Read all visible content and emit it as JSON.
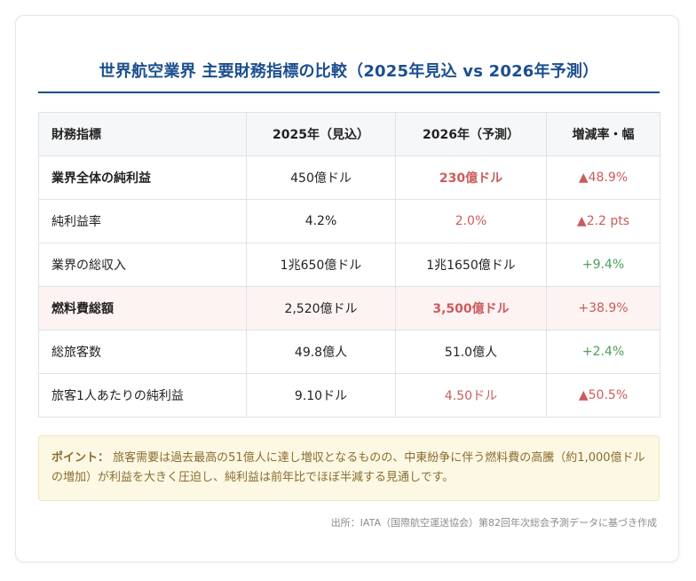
{
  "title": "世界航空業界 主要財務指標の比較（2025年見込 vs 2026年予測）",
  "table": {
    "headers": [
      "財務指標",
      "2025年（見込）",
      "2026年（予測）",
      "増減率・幅"
    ],
    "rows": [
      {
        "label": "業界全体の純利益",
        "y2025": "450億ドル",
        "y2026": "230億ドル",
        "change": "▲48.9%"
      },
      {
        "label": "純利益率",
        "y2025": "4.2%",
        "y2026": "2.0%",
        "change": "▲2.2 pts"
      },
      {
        "label": "業界の総収入",
        "y2025": "1兆650億ドル",
        "y2026": "1兆1650億ドル",
        "change": "+9.4%"
      },
      {
        "label": "燃料費総額",
        "y2025": "2,520億ドル",
        "y2026": "3,500億ドル",
        "change": "+38.9%"
      },
      {
        "label": "総旅客数",
        "y2025": "49.8億人",
        "y2026": "51.0億人",
        "change": "+2.4%"
      },
      {
        "label": "旅客1人あたりの純利益",
        "y2025": "9.10ドル",
        "y2026": "4.50ドル",
        "change": "▲50.5%"
      }
    ]
  },
  "note": {
    "label": "ポイント：",
    "text": "旅客需要は過去最高の51億人に達し増収となるものの、中東紛争に伴う燃料費の高騰（約1,000億ドルの増加）が利益を大きく圧迫し、純利益は前年比でほぼ半減する見通しです。"
  },
  "source": "出所：IATA（国際航空運送協会）第82回年次総会予測データに基づき作成",
  "colors": {
    "accent": "#1c4f8f",
    "negative": "#cc5b5b",
    "positive": "#4aa05a",
    "highlight_row": "#fdf3f3",
    "note_bg": "#fdf8e4"
  }
}
